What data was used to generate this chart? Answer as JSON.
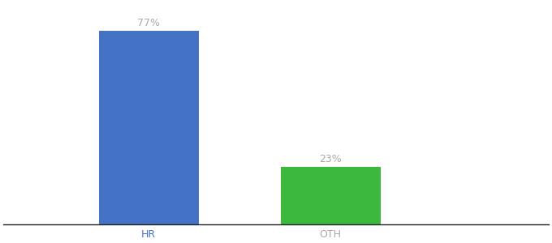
{
  "categories": [
    "HR",
    "OTH"
  ],
  "values": [
    77,
    23
  ],
  "bar_colors": [
    "#4472C4",
    "#3CB93C"
  ],
  "label_color": "#aaaaaa",
  "bar_label_fontsize": 9,
  "xlabel_fontsize": 9,
  "xlabel_color_hr": "#4472C4",
  "xlabel_color_oth": "#aaaaaa",
  "background_color": "#ffffff",
  "ylim": [
    0,
    88
  ],
  "bar_width": 0.55,
  "figsize": [
    6.8,
    3.0
  ],
  "dpi": 100,
  "x_positions": [
    1,
    2
  ],
  "xlim": [
    0.2,
    3.2
  ]
}
